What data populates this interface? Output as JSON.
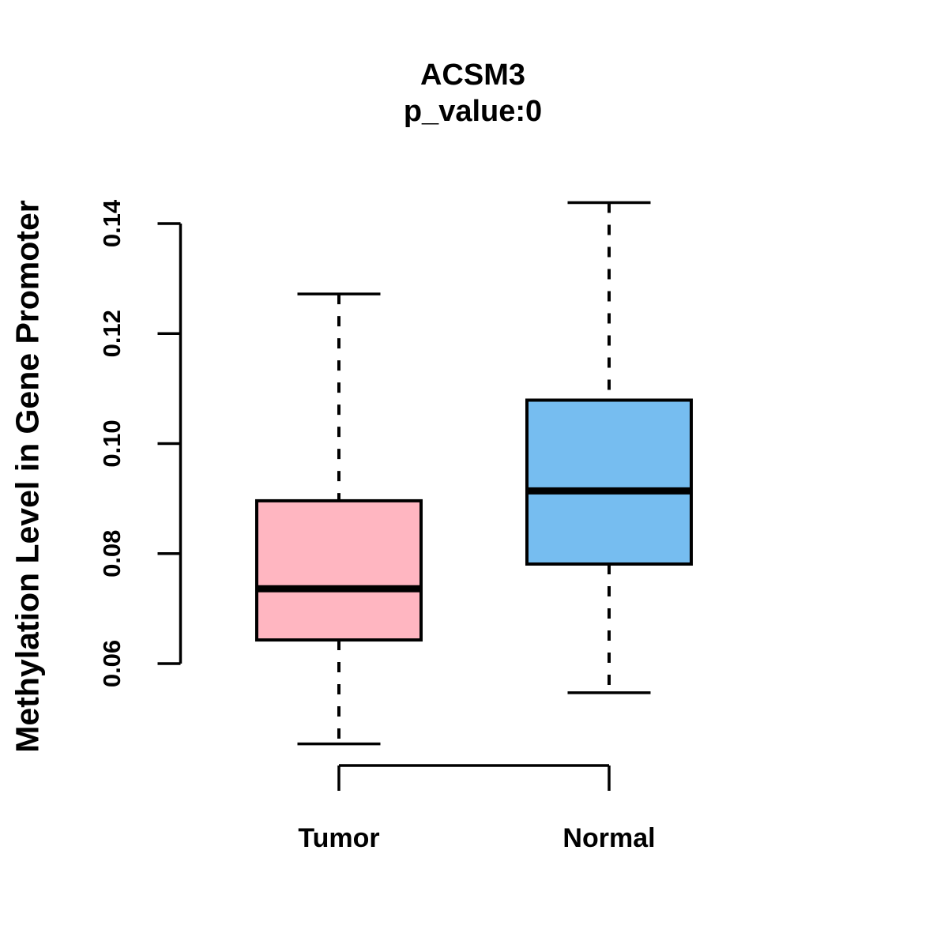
{
  "title": "ACSM3",
  "subtitle": "p_value:0",
  "y_axis_label": "Methylation Level in Gene Promoter",
  "chart_data": {
    "type": "boxplot",
    "title": "ACSM3",
    "subtitle": "p_value:0",
    "ylabel": "Methylation Level in Gene Promoter",
    "xlabel": "",
    "categories": [
      "Tumor",
      "Normal"
    ],
    "series": [
      {
        "name": "Tumor",
        "color": "#FFB6C1",
        "lower_whisker": 0.0454,
        "q1": 0.0643,
        "median": 0.0736,
        "q3": 0.0896,
        "upper_whisker": 0.1272,
        "outliers": []
      },
      {
        "name": "Normal",
        "color": "#76BDF0",
        "lower_whisker": 0.0547,
        "q1": 0.0781,
        "median": 0.0914,
        "q3": 0.1079,
        "upper_whisker": 0.1438,
        "outliers": []
      }
    ],
    "ytick_labels": [
      "0.06",
      "0.08",
      "0.10",
      "0.12",
      "0.14"
    ],
    "ytick_values": [
      0.06,
      0.08,
      0.1,
      0.12,
      0.14
    ],
    "ylim": [
      0.042,
      0.147
    ],
    "grid": false,
    "legend": "none",
    "line_color": "#000000",
    "whisker_style": "dashed"
  }
}
